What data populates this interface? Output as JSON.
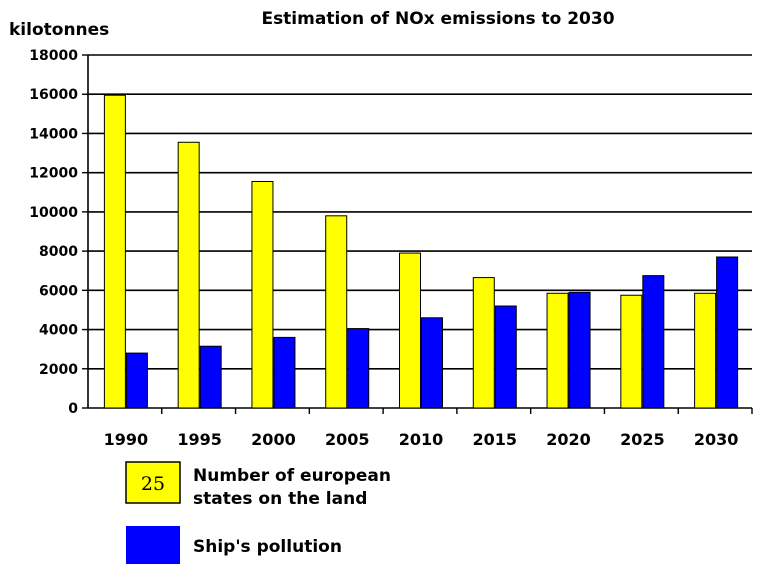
{
  "chart_data": {
    "type": "bar",
    "title": "Estimation of NOx emissions to 2030",
    "ylabel": "kilotonnes",
    "xlabel": "",
    "categories": [
      "1990",
      "1995",
      "2000",
      "2005",
      "2010",
      "2015",
      "2020",
      "2025",
      "2030"
    ],
    "ylim": [
      0,
      18000
    ],
    "yticks": [
      0,
      2000,
      4000,
      6000,
      8000,
      10000,
      12000,
      14000,
      16000,
      18000
    ],
    "grid": true,
    "legend_position": "bottom-left",
    "series": [
      {
        "name": "Number of european states on the land",
        "color": "#ffff00",
        "values": [
          15950,
          13550,
          11550,
          9800,
          7900,
          6650,
          5850,
          5750,
          5850
        ]
      },
      {
        "name": "Ship's pollution",
        "color": "#0000ff",
        "values": [
          2800,
          3150,
          3600,
          4050,
          4600,
          5200,
          5900,
          6750,
          7700
        ]
      }
    ]
  },
  "legend": {
    "items": [
      {
        "swatch_text": "25",
        "label_lines": [
          "Number of european",
          "states on the land"
        ],
        "color": "#ffff00"
      },
      {
        "swatch_text": "",
        "label_lines": [
          "Ship's pollution"
        ],
        "color": "#0000ff"
      }
    ]
  }
}
